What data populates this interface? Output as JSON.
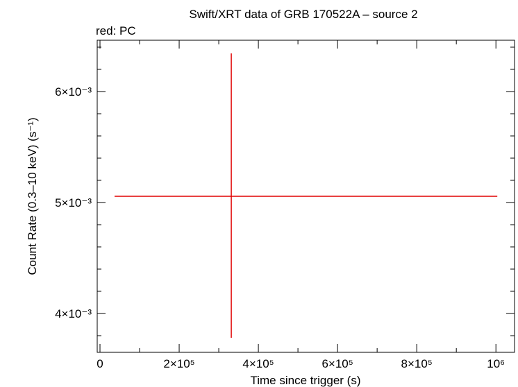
{
  "chart_data": {
    "type": "errorbar",
    "title": "Swift/XRT data of GRB 170522A – source 2",
    "subtitle": "red: PC",
    "x_label": "Time since trigger (s)",
    "y_label": "Count Rate (0.3–10 keV) (s⁻¹)",
    "xlim": [
      -7000,
      1047000
    ],
    "ylim": [
      0.00365,
      0.0064625
    ],
    "xticks": [
      0,
      {
        "value": 200000,
        "label": "2×10⁵"
      },
      {
        "value": 400000,
        "label": "4×10⁵"
      },
      {
        "value": 600000,
        "label": "6×10⁵"
      },
      {
        "value": 800000,
        "label": "8×10⁵"
      },
      {
        "value": 1000000,
        "label": "10⁶"
      }
    ],
    "xminorticks": [
      100000,
      300000,
      500000,
      700000,
      900000
    ],
    "yticks": [
      {
        "value": 0.004,
        "label": "4×10⁻³"
      },
      {
        "value": 0.005,
        "label": "5×10⁻³"
      },
      {
        "value": 0.006,
        "label": "6×10⁻³"
      }
    ],
    "yminorticks": [
      0.0038,
      0.0042,
      0.0044,
      0.0046,
      0.0048,
      0.0052,
      0.0054,
      0.0056,
      0.0058,
      0.0062,
      0.0064
    ],
    "series": [
      {
        "color": "#e00000",
        "x": [
          331600
        ],
        "values": [
          0.005056
        ],
        "xerr_minus": [
          294800
        ],
        "xerr_plus": [
          671900
        ],
        "yerr_minus": [
          0.001275
        ],
        "yerr_plus": [
          0.001288
        ]
      }
    ]
  }
}
